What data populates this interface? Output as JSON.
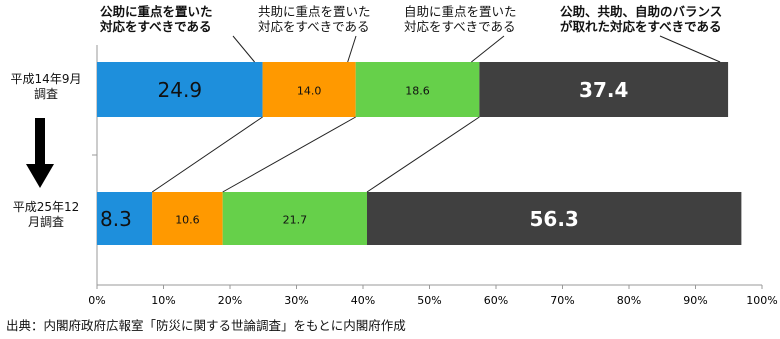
{
  "chart_data": {
    "type": "stacked-barh",
    "categories": [
      "平成14年9月\n調査",
      "平成25年12\n月調査"
    ],
    "series": [
      {
        "name": "公助に重点を置いた\n対応をすべきである",
        "color": "#1e8fdc",
        "values": [
          24.9,
          8.3
        ]
      },
      {
        "name": "共助に重点を置いた\n対応をすべきである",
        "color": "#ff9900",
        "values": [
          14.0,
          10.6
        ],
        "value_labels": [
          "14.0",
          "10.6"
        ]
      },
      {
        "name": "自助に重点を置いた\n対応をすべきである",
        "color": "#66d04a",
        "values": [
          18.6,
          21.7
        ]
      },
      {
        "name": "公助、共助、自助のバランス\nが取れた対応をすべきである",
        "color": "#404040",
        "values": [
          37.4,
          56.3
        ]
      }
    ],
    "xlim": [
      0,
      100
    ],
    "xticks": [
      {
        "value": 0,
        "label": "0%"
      },
      {
        "value": 10,
        "label": "10%"
      },
      {
        "value": 20,
        "label": "20%"
      },
      {
        "value": 30,
        "label": "30%"
      },
      {
        "value": 40,
        "label": "40%"
      },
      {
        "value": 50,
        "label": "50%"
      },
      {
        "value": 60,
        "label": "60%"
      },
      {
        "value": 70,
        "label": "70%"
      },
      {
        "value": 80,
        "label": "80%"
      },
      {
        "value": 90,
        "label": "90%"
      },
      {
        "value": 100,
        "label": "100%"
      }
    ],
    "source": "出典：内閣府政府広報室「防災に関する世論調査」をもとに内閣府作成"
  }
}
